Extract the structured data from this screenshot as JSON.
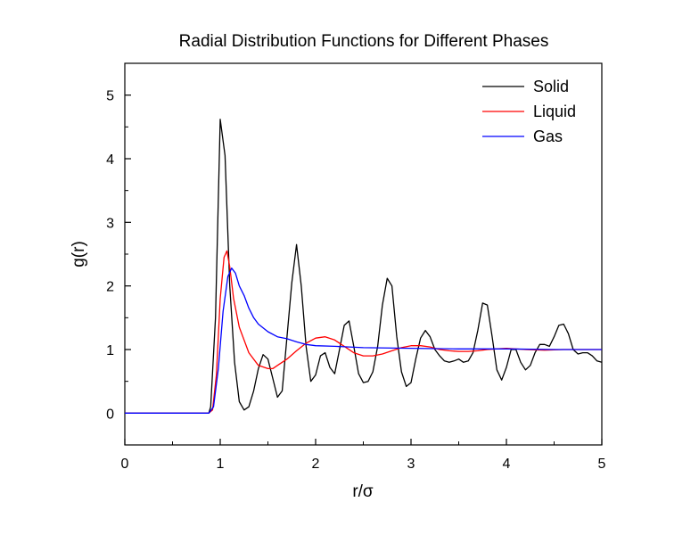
{
  "chart_data": {
    "type": "line",
    "title": "Radial Distribution Functions for Different Phases",
    "xlabel": "r/σ",
    "ylabel": "g(r)",
    "xlim": [
      0,
      5
    ],
    "ylim": [
      -0.5,
      5.5
    ],
    "xticks": [
      "0",
      "1",
      "2",
      "3",
      "4",
      "5"
    ],
    "yticks": [
      "0",
      "1",
      "2",
      "3",
      "4",
      "5"
    ],
    "grid": false,
    "legend": "top-right",
    "series": [
      {
        "name": "Solid",
        "color": "#000000",
        "x": [
          0,
          0.88,
          0.9,
          0.95,
          1.0,
          1.05,
          1.1,
          1.15,
          1.2,
          1.25,
          1.3,
          1.35,
          1.4,
          1.45,
          1.5,
          1.55,
          1.6,
          1.65,
          1.7,
          1.75,
          1.8,
          1.85,
          1.9,
          1.95,
          2.0,
          2.05,
          2.1,
          2.15,
          2.2,
          2.25,
          2.3,
          2.35,
          2.4,
          2.45,
          2.5,
          2.55,
          2.6,
          2.65,
          2.7,
          2.75,
          2.8,
          2.85,
          2.9,
          2.95,
          3.0,
          3.05,
          3.1,
          3.15,
          3.2,
          3.25,
          3.3,
          3.35,
          3.4,
          3.45,
          3.5,
          3.55,
          3.6,
          3.65,
          3.7,
          3.75,
          3.8,
          3.85,
          3.9,
          3.95,
          4.0,
          4.05,
          4.1,
          4.15,
          4.2,
          4.25,
          4.3,
          4.35,
          4.4,
          4.45,
          4.5,
          4.55,
          4.6,
          4.65,
          4.7,
          4.75,
          4.8,
          4.85,
          4.9,
          4.95,
          5.0
        ],
        "y": [
          0,
          0,
          0.1,
          1.5,
          4.62,
          4.05,
          2.0,
          0.8,
          0.18,
          0.05,
          0.1,
          0.35,
          0.7,
          0.92,
          0.85,
          0.55,
          0.25,
          0.35,
          1.2,
          2.05,
          2.65,
          2.0,
          1.05,
          0.5,
          0.6,
          0.9,
          0.95,
          0.72,
          0.62,
          1.0,
          1.38,
          1.45,
          1.05,
          0.62,
          0.48,
          0.5,
          0.65,
          1.05,
          1.7,
          2.12,
          2.0,
          1.2,
          0.65,
          0.42,
          0.48,
          0.85,
          1.18,
          1.3,
          1.2,
          1.0,
          0.9,
          0.82,
          0.8,
          0.82,
          0.85,
          0.8,
          0.82,
          0.95,
          1.3,
          1.73,
          1.7,
          1.2,
          0.68,
          0.52,
          0.72,
          1.0,
          1.0,
          0.8,
          0.68,
          0.75,
          0.95,
          1.08,
          1.08,
          1.05,
          1.2,
          1.38,
          1.4,
          1.25,
          1.0,
          0.93,
          0.95,
          0.95,
          0.9,
          0.82,
          0.8
        ]
      },
      {
        "name": "Liquid",
        "color": "#ff0000",
        "x": [
          0,
          0.88,
          0.92,
          0.96,
          1.0,
          1.04,
          1.07,
          1.1,
          1.14,
          1.2,
          1.3,
          1.4,
          1.5,
          1.55,
          1.6,
          1.7,
          1.8,
          1.9,
          2.0,
          2.1,
          2.2,
          2.3,
          2.4,
          2.5,
          2.6,
          2.7,
          2.8,
          2.9,
          3.0,
          3.1,
          3.2,
          3.3,
          3.4,
          3.5,
          3.6,
          3.7,
          3.8,
          3.9,
          4.0,
          4.2,
          4.4,
          4.6,
          4.8,
          5.0
        ],
        "y": [
          0,
          0,
          0.05,
          0.6,
          1.8,
          2.45,
          2.55,
          2.3,
          1.8,
          1.35,
          0.95,
          0.75,
          0.7,
          0.7,
          0.75,
          0.85,
          0.98,
          1.1,
          1.18,
          1.2,
          1.15,
          1.05,
          0.95,
          0.9,
          0.9,
          0.93,
          0.98,
          1.03,
          1.06,
          1.06,
          1.04,
          1.0,
          0.98,
          0.97,
          0.97,
          0.98,
          1.0,
          1.01,
          1.02,
          1.0,
          0.99,
          1.0,
          1.0,
          1.0
        ]
      },
      {
        "name": "Gas",
        "color": "#0000ff",
        "x": [
          0,
          0.88,
          0.93,
          0.98,
          1.03,
          1.08,
          1.12,
          1.16,
          1.2,
          1.25,
          1.3,
          1.35,
          1.4,
          1.5,
          1.6,
          1.7,
          1.8,
          1.9,
          2.0,
          2.2,
          2.5,
          3.0,
          3.5,
          4.0,
          4.5,
          5.0
        ],
        "y": [
          0,
          0,
          0.1,
          0.7,
          1.6,
          2.15,
          2.28,
          2.2,
          2.0,
          1.85,
          1.65,
          1.5,
          1.4,
          1.28,
          1.2,
          1.17,
          1.12,
          1.08,
          1.06,
          1.05,
          1.03,
          1.02,
          1.01,
          1.01,
          1.0,
          1.0
        ]
      }
    ]
  }
}
